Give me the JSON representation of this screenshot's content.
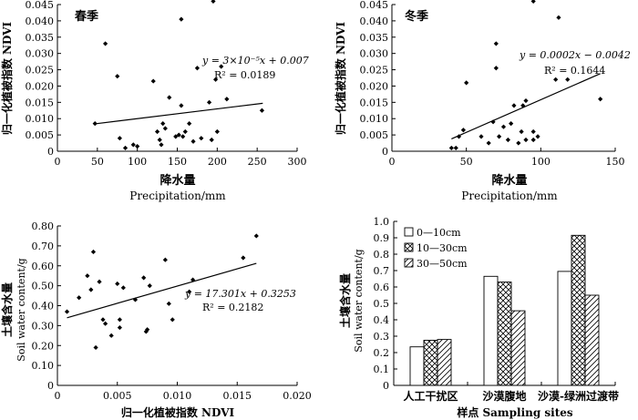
{
  "chart_data": [
    {
      "type": "scatter",
      "id": "a",
      "season_label": "春季",
      "xlabel_cn": "降水量",
      "xlabel_en": "Precipitation/mm",
      "ylabel": "归一化植被指数 NDVI",
      "xlim": [
        0,
        300
      ],
      "ylim": [
        0,
        0.045
      ],
      "xticks": [
        0,
        50,
        100,
        150,
        200,
        250,
        300
      ],
      "yticks": [
        0,
        0.005,
        0.01,
        0.015,
        0.02,
        0.025,
        0.03,
        0.035,
        0.04,
        0.045
      ],
      "ytick_labels": [
        "0",
        "0.005",
        "0.010",
        "0.015",
        "0.020",
        "0.025",
        "0.030",
        "0.035",
        "0.040",
        "0.045"
      ],
      "equation": "y = 3×10⁻⁵x + 0.007",
      "r2": "R² = 0.0189",
      "trend": {
        "slope": 3e-05,
        "intercept": 0.007,
        "x_range": [
          47,
          257
        ]
      },
      "points": [
        [
          47,
          0.0085
        ],
        [
          60,
          0.033
        ],
        [
          75,
          0.023
        ],
        [
          78,
          0.004
        ],
        [
          85,
          0.001
        ],
        [
          95,
          0.002
        ],
        [
          100,
          0.0015
        ],
        [
          120,
          0.0215
        ],
        [
          125,
          0.006
        ],
        [
          128,
          0.0035
        ],
        [
          130,
          0.002
        ],
        [
          132,
          0.0085
        ],
        [
          135,
          0.007
        ],
        [
          140,
          0.0165
        ],
        [
          148,
          0.0045
        ],
        [
          152,
          0.005
        ],
        [
          155,
          0.014
        ],
        [
          155,
          0.0405
        ],
        [
          157,
          0.0045
        ],
        [
          160,
          0.006
        ],
        [
          165,
          0.0085
        ],
        [
          170,
          0.003
        ],
        [
          175,
          0.0255
        ],
        [
          180,
          0.004
        ],
        [
          190,
          0.015
        ],
        [
          193,
          0.0035
        ],
        [
          195,
          0.046
        ],
        [
          198,
          0.022
        ],
        [
          200,
          0.006
        ],
        [
          205,
          0.026
        ],
        [
          212,
          0.016
        ],
        [
          256,
          0.0125
        ]
      ]
    },
    {
      "type": "scatter",
      "id": "b",
      "season_label": "冬季",
      "xlabel_cn": "降水量",
      "xlabel_en": "Precipitation/mm",
      "ylabel": "归一化植被指数 NDVI",
      "xlim": [
        0,
        150
      ],
      "ylim": [
        0,
        0.045
      ],
      "xticks": [
        0,
        50,
        100,
        150
      ],
      "yticks": [
        0,
        0.005,
        0.01,
        0.015,
        0.02,
        0.025,
        0.03,
        0.035,
        0.04,
        0.045
      ],
      "ytick_labels": [
        "0",
        "0.005",
        "0.010",
        "0.015",
        "0.020",
        "0.025",
        "0.030",
        "0.035",
        "0.040",
        "0.045"
      ],
      "equation": "y = 0.0002x − 0.0042",
      "r2": "R² = 0.1644",
      "trend": {
        "slope": 0.0002,
        "intercept": -0.0042,
        "x_range": [
          40,
          140
        ]
      },
      "points": [
        [
          40,
          0.001
        ],
        [
          43,
          0.001
        ],
        [
          45,
          0.0045
        ],
        [
          48,
          0.0065
        ],
        [
          50,
          0.021
        ],
        [
          60,
          0.0045
        ],
        [
          65,
          0.0025
        ],
        [
          68,
          0.009
        ],
        [
          70,
          0.033
        ],
        [
          70,
          0.0255
        ],
        [
          72,
          0.0045
        ],
        [
          75,
          0.0075
        ],
        [
          78,
          0.0035
        ],
        [
          80,
          0.0085
        ],
        [
          82,
          0.014
        ],
        [
          85,
          0.0025
        ],
        [
          87,
          0.006
        ],
        [
          88,
          0.014
        ],
        [
          90,
          0.0035
        ],
        [
          90,
          0.0155
        ],
        [
          95,
          0.006
        ],
        [
          95,
          0.0035
        ],
        [
          95,
          0.046
        ],
        [
          98,
          0.0045
        ],
        [
          110,
          0.022
        ],
        [
          112,
          0.041
        ],
        [
          118,
          0.022
        ],
        [
          140,
          0.016
        ]
      ]
    },
    {
      "type": "scatter",
      "id": "c",
      "xlabel": "归一化植被指数 NDVI",
      "ylabel_cn": "土壤含水量",
      "ylabel_en": "Soil  water content/g",
      "xlim": [
        0,
        0.02
      ],
      "ylim": [
        0,
        0.8
      ],
      "xticks": [
        0,
        0.005,
        0.01,
        0.015,
        0.02
      ],
      "xtick_labels": [
        "0",
        "0.005",
        "0.010",
        "0.015",
        "0.020"
      ],
      "yticks": [
        0,
        0.1,
        0.2,
        0.3,
        0.4,
        0.5,
        0.6,
        0.7,
        0.8
      ],
      "ytick_labels": [
        "0",
        "0.10",
        "0.20",
        "0.30",
        "0.40",
        "0.50",
        "0.60",
        "0.70",
        "0.80"
      ],
      "equation": "y = 17.301x + 0.3253",
      "r2": "R² = 0.2182",
      "trend": {
        "slope": 17.301,
        "intercept": 0.3253,
        "x_range": [
          0.0008,
          0.0166
        ]
      },
      "points": [
        [
          0.0008,
          0.37
        ],
        [
          0.0018,
          0.44
        ],
        [
          0.0025,
          0.55
        ],
        [
          0.0028,
          0.48
        ],
        [
          0.003,
          0.67
        ],
        [
          0.0032,
          0.19
        ],
        [
          0.0035,
          0.52
        ],
        [
          0.0038,
          0.33
        ],
        [
          0.004,
          0.31
        ],
        [
          0.0045,
          0.25
        ],
        [
          0.005,
          0.51
        ],
        [
          0.0052,
          0.29
        ],
        [
          0.0052,
          0.33
        ],
        [
          0.0055,
          0.49
        ],
        [
          0.0065,
          0.43
        ],
        [
          0.0072,
          0.54
        ],
        [
          0.0074,
          0.27
        ],
        [
          0.0075,
          0.28
        ],
        [
          0.0077,
          0.5
        ],
        [
          0.009,
          0.63
        ],
        [
          0.0093,
          0.41
        ],
        [
          0.0096,
          0.33
        ],
        [
          0.011,
          0.47
        ],
        [
          0.0113,
          0.53
        ],
        [
          0.0155,
          0.64
        ],
        [
          0.0166,
          0.75
        ]
      ]
    },
    {
      "type": "bar",
      "id": "d",
      "xlabel": "样点 Sampling sites",
      "ylabel_cn": "土壤含水量",
      "ylabel_en": "Soil  water content/g",
      "ylim": [
        0,
        1.0
      ],
      "yticks": [
        0,
        0.1,
        0.2,
        0.3,
        0.4,
        0.5,
        0.6,
        0.7,
        0.8,
        0.9,
        1.0
      ],
      "ytick_labels": [
        "0",
        "0.1",
        "0.2",
        "0.3",
        "0.4",
        "0.5",
        "0.6",
        "0.7",
        "0.8",
        "0.9",
        "1.0"
      ],
      "categories": [
        "人工干扰区",
        "沙漠腹地",
        "沙漠-绿洲过渡带"
      ],
      "series": [
        {
          "name": "0—10cm",
          "pattern": "blank",
          "values": [
            0.235,
            0.665,
            0.695
          ]
        },
        {
          "name": "10—30cm",
          "pattern": "cross",
          "values": [
            0.275,
            0.63,
            0.915
          ]
        },
        {
          "name": "30—50cm",
          "pattern": "diag",
          "values": [
            0.28,
            0.455,
            0.55
          ]
        }
      ],
      "legend_position": "top-left"
    }
  ]
}
